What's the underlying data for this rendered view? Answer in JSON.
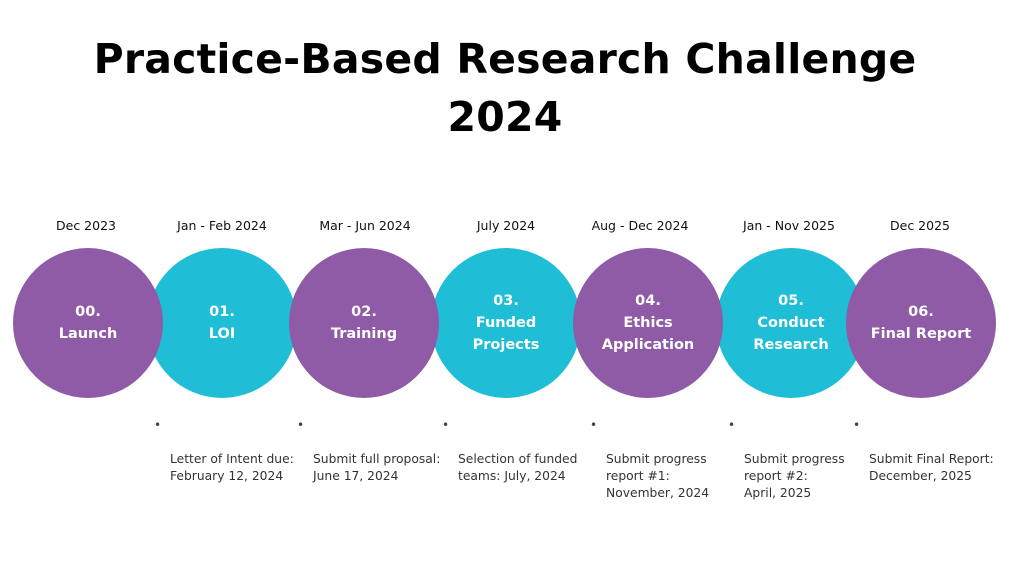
{
  "title": {
    "line1": "Practice-Based Research Challenge",
    "line2": "2024"
  },
  "colors": {
    "purple": "#8f5aa6",
    "teal": "#1fbed6"
  },
  "milestones": [
    {
      "date": "Dec 2023",
      "number": "00.",
      "label": "Launch",
      "color": "purple",
      "note": ""
    },
    {
      "date": "Jan - Feb 2024",
      "number": "01.",
      "label": "LOI",
      "color": "teal",
      "note": "Letter of Intent due:\nFebruary 12, 2024"
    },
    {
      "date": "Mar - Jun 2024",
      "number": "02.",
      "label": "Training",
      "color": "purple",
      "note": "Submit full proposal:\nJune 17, 2024"
    },
    {
      "date": "July 2024",
      "number": "03.",
      "label": "Funded\nProjects",
      "color": "teal",
      "note": "Selection of funded\nteams: July, 2024"
    },
    {
      "date": "Aug - Dec 2024",
      "number": "04.",
      "label": "Ethics\nApplication",
      "color": "purple",
      "note": "Submit progress\nreport #1:\nNovember, 2024"
    },
    {
      "date": "Jan - Nov 2025",
      "number": "05.",
      "label": "Conduct\nResearch",
      "color": "teal",
      "note": "Submit progress\nreport #2:\n April, 2025"
    },
    {
      "date": "Dec 2025",
      "number": "06.",
      "label": "Final Report",
      "color": "purple",
      "note": "Submit Final Report:\nDecember, 2025"
    }
  ]
}
